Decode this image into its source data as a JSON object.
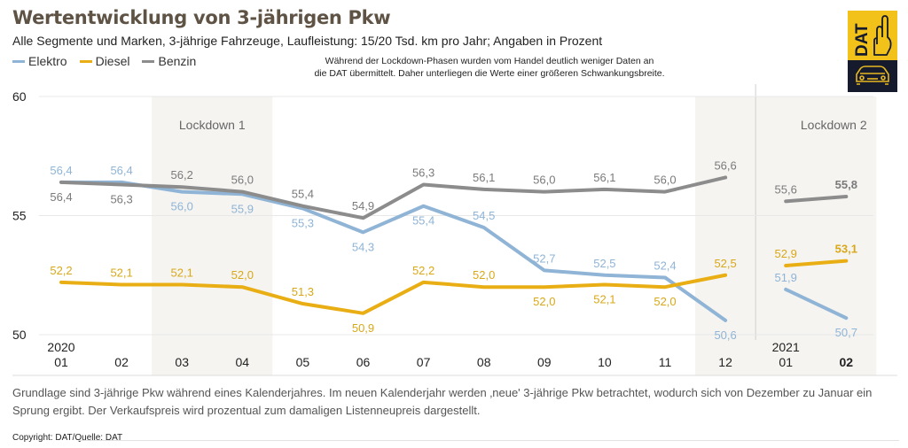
{
  "header": {
    "title": "Wertentwicklung von 3-jährigen Pkw",
    "subtitle": "Alle Segmente und Marken, 3-jährige Fahrzeuge, Laufleistung: 15/20 Tsd. km pro Jahr; Angaben in Prozent",
    "note_line1": "Während der Lockdown-Phasen wurden vom Handel deutlich weniger Daten an",
    "note_line2": "die DAT übermittelt. Daher unterliegen die Werte einer größeren Schwankungsbreite."
  },
  "logo": {
    "text": "DAT",
    "icon": "dat-hand-car-logo",
    "colors": {
      "top": "#f2c21b",
      "bottom": "#151b2c"
    }
  },
  "footer": {
    "footnote": "Grundlage sind 3-jährige Pkw während eines Kalenderjahres. Im neuen Kalenderjahr werden ‚neue' 3-jährige Pkw betrachtet, wodurch sich von Dezember zu Januar ein Sprung ergibt. Der Verkaufspreis wird prozentual zum damaligen Listenneupreis dargestellt.",
    "copyright": "Copyright: DAT/Quelle: DAT"
  },
  "chart_data": {
    "type": "line",
    "title": "Wertentwicklung von 3-jährigen Pkw",
    "xlabel": "",
    "ylabel": "Prozent",
    "ylim": [
      50,
      60
    ],
    "yticks": [
      "50",
      "55",
      "60"
    ],
    "grid": true,
    "legend": "top-left",
    "categories": [
      "01",
      "02",
      "03",
      "04",
      "05",
      "06",
      "07",
      "08",
      "09",
      "10",
      "11",
      "12",
      "01",
      "02"
    ],
    "year_labels": [
      {
        "index": 0,
        "label": "2020"
      },
      {
        "index": 12,
        "label": "2021"
      }
    ],
    "bold_category_index": 13,
    "segments": [
      [
        0,
        11
      ],
      [
        12,
        13
      ]
    ],
    "shaded_regions": [
      {
        "from": 2,
        "to": 3,
        "label": "Lockdown 1"
      },
      {
        "from": 11,
        "to": 13,
        "label": "Lockdown 2"
      }
    ],
    "series": [
      {
        "name": "Elektro",
        "color": "#8fb4d6",
        "values": [
          56.4,
          56.4,
          56.0,
          55.9,
          55.3,
          54.3,
          55.4,
          54.5,
          52.7,
          52.5,
          52.4,
          50.6,
          51.9,
          50.7
        ],
        "labels": [
          "56,4",
          "56,4",
          "56,0",
          "55,9",
          "55,3",
          "54,3",
          "55,4",
          "54,5",
          "52,7",
          "52,5",
          "52,4",
          "50,6",
          "51,9",
          "50,7"
        ],
        "label_pos": [
          "above",
          "above",
          "below",
          "below",
          "below",
          "below",
          "below",
          "above",
          "above",
          "above",
          "above",
          "below",
          "above",
          "below"
        ]
      },
      {
        "name": "Diesel",
        "color": "#e8ae14",
        "values": [
          52.2,
          52.1,
          52.1,
          52.0,
          51.3,
          50.9,
          52.2,
          52.0,
          52.0,
          52.1,
          52.0,
          52.5,
          52.9,
          53.1
        ],
        "labels": [
          "52,2",
          "52,1",
          "52,1",
          "52,0",
          "51,3",
          "50,9",
          "52,2",
          "52,0",
          "52,0",
          "52,1",
          "52,0",
          "52,5",
          "52,9",
          "53,1"
        ],
        "label_pos": [
          "above",
          "above",
          "above",
          "above",
          "above",
          "below",
          "above",
          "above",
          "below",
          "below",
          "below",
          "above",
          "above",
          "above"
        ]
      },
      {
        "name": "Benzin",
        "color": "#8c8c8c",
        "values": [
          56.4,
          56.3,
          56.2,
          56.0,
          55.4,
          54.9,
          56.3,
          56.1,
          56.0,
          56.1,
          56.0,
          56.6,
          55.6,
          55.8
        ],
        "labels": [
          "56,4",
          "56,3",
          "56,2",
          "56,0",
          "55,4",
          "54,9",
          "56,3",
          "56,1",
          "56,0",
          "56,1",
          "56,0",
          "56,6",
          "55,6",
          "55,8"
        ],
        "label_pos": [
          "below",
          "below",
          "above",
          "above",
          "above",
          "above",
          "above",
          "above",
          "above",
          "above",
          "above",
          "above",
          "above",
          "above"
        ]
      }
    ],
    "bold_labels": [
      "Diesel:13",
      "Benzin:13"
    ]
  }
}
